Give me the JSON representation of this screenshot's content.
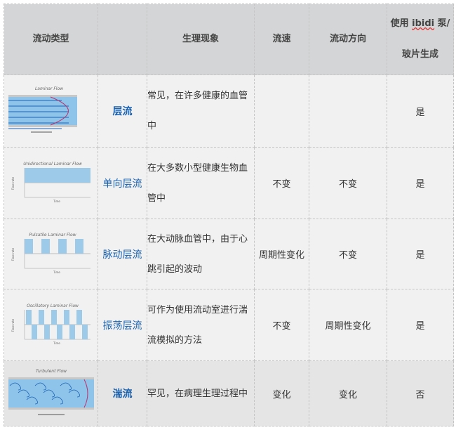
{
  "header": {
    "type": "流动类型",
    "phenomenon": "生理现象",
    "speed": "流速",
    "direction": "流动方向",
    "pump_pre": "使用 ",
    "pump_brand": "ibidi",
    "pump_post": " 泵/",
    "pump_line2": "玻片生成"
  },
  "rows": [
    {
      "figure_title": "Laminar Flow",
      "name": "层流",
      "phenomenon": "常见，在许多健康的血管中",
      "speed": "",
      "direction": "",
      "pump": "是"
    },
    {
      "figure_title": "Unidirectional Laminar Flow",
      "name": "单向层流",
      "phenomenon": "在大多数小型健康生物血管中",
      "speed": "不变",
      "direction": "不变",
      "pump": "是"
    },
    {
      "figure_title": "Pulsatile Laminar Flow",
      "name": "脉动层流",
      "phenomenon": "在大动脉血管中，由于心跳引起的波动",
      "speed": "周期性变化",
      "direction": "不变",
      "pump": "是"
    },
    {
      "figure_title": "Oscillatory Laminar Flow",
      "name": "振荡层流",
      "phenomenon": "可作为使用流动室进行湍流模拟的方法",
      "speed": "不变",
      "direction": "周期性变化",
      "pump": "是"
    },
    {
      "figure_title": "Turbulent Flow",
      "name": "湍流",
      "phenomenon": "罕见，在病理生理过程中",
      "speed": "变化",
      "direction": "变化",
      "pump": "否"
    }
  ],
  "chart_axis": {
    "ylabel": "Flow rate",
    "xlabel": "Time"
  },
  "colors": {
    "name": "#1a62b0",
    "fill": "#9ecae9",
    "header": "#d4d5d6"
  }
}
